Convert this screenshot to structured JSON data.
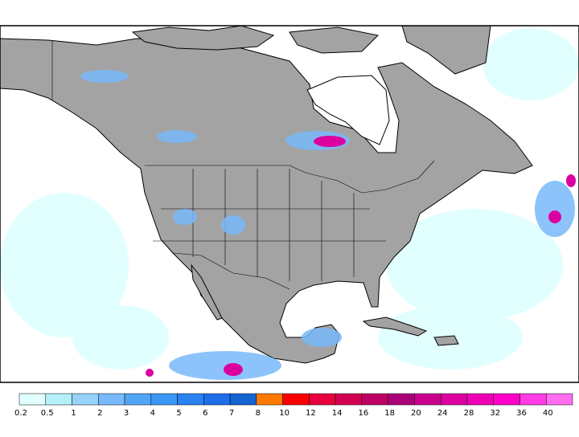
{
  "colorbar": {
    "levels": [
      0.2,
      0.5,
      1,
      2,
      3,
      4,
      5,
      6,
      7,
      8,
      10,
      12,
      14,
      16,
      18,
      20,
      24,
      28,
      32,
      36,
      40
    ],
    "colors": [
      "#e1ffff",
      "#b4f0fa",
      "#96d2fa",
      "#78b9fa",
      "#50a5f5",
      "#3c97f5",
      "#2882f0",
      "#1e6eeb",
      "#1464d2",
      "#ff7800",
      "#fa0000",
      "#e6003c",
      "#d20050",
      "#be0064",
      "#aa0078",
      "#c8008c",
      "#dc00a0",
      "#f000b4",
      "#ff00c8",
      "#ff3ce6",
      "#ff6ef0"
    ]
  }
}
